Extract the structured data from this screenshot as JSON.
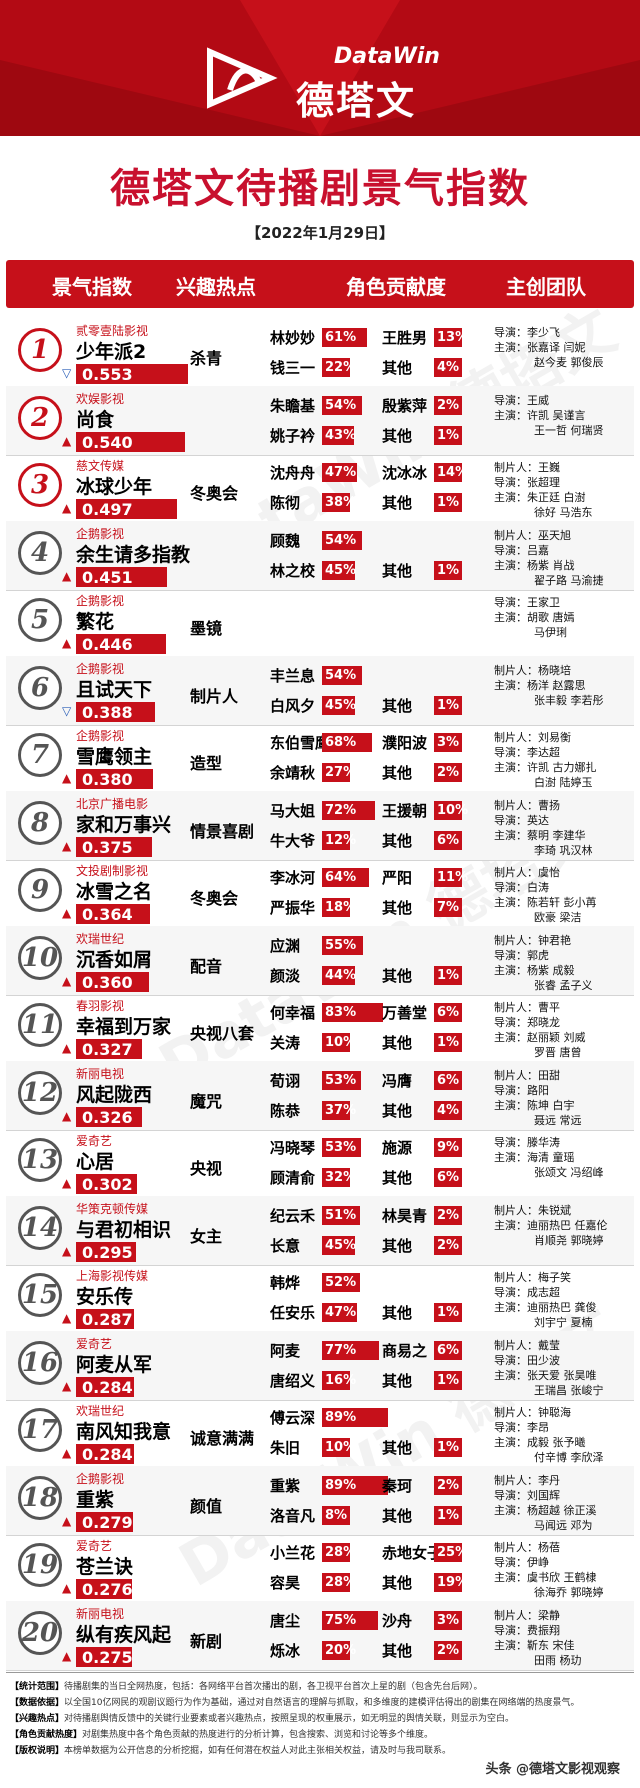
{
  "brand": {
    "cn": "德塔文",
    "en": "DataWin"
  },
  "title": "德塔文待播剧景气指数",
  "date": "【2022年1月29日】",
  "headers": [
    "景气指数",
    "兴趣热点",
    "角色贡献度",
    "主创团队"
  ],
  "colors": {
    "accent": "#c6101a",
    "dark_bar": "#2d2d2d"
  },
  "chart_data": {
    "type": "table",
    "rows": [
      {
        "rank": "1",
        "company": "贰零壹陆影视",
        "drama": "少年派2",
        "score": "0.553",
        "value": 0.553,
        "trend": "down",
        "hot": "杀青",
        "a1": "林妙妙",
        "p1": "61%",
        "v1": 61,
        "a2": "王胜男",
        "p2": "13%",
        "v2": 13,
        "a3": "钱三一",
        "p3": "22%",
        "v3": 22,
        "a4": "其他",
        "p4": "4%",
        "v4": 4,
        "crew": [
          "导演：李少飞",
          "主演：张嘉译 闫妮",
          "赵今麦 郭俊辰"
        ]
      },
      {
        "rank": "2",
        "company": "欢娱影视",
        "drama": "尚食",
        "score": "0.540",
        "value": 0.54,
        "trend": "up",
        "hot": "",
        "a1": "朱瞻基",
        "p1": "54%",
        "v1": 54,
        "a2": "殷紫萍",
        "p2": "2%",
        "v2": 2,
        "a3": "姚子衿",
        "p3": "43%",
        "v3": 43,
        "a4": "其他",
        "p4": "1%",
        "v4": 1,
        "crew": [
          "导演：王威",
          "主演：许凯 吴谨言",
          "王一哲 何瑞贤"
        ]
      },
      {
        "rank": "3",
        "company": "慈文传媒",
        "drama": "冰球少年",
        "score": "0.497",
        "value": 0.497,
        "trend": "up",
        "hot": "冬奥会",
        "a1": "沈舟舟",
        "p1": "47%",
        "v1": 47,
        "a2": "沈冰冰",
        "p2": "14%",
        "v2": 14,
        "a3": "陈彻",
        "p3": "38%",
        "v3": 38,
        "a4": "其他",
        "p4": "1%",
        "v4": 1,
        "crew": [
          "制片人：王巍",
          "导演：张超理",
          "主演：朱正廷 白澍",
          "徐好 马浩东"
        ]
      },
      {
        "rank": "4",
        "company": "企鹅影视",
        "drama": "余生请多指教",
        "score": "0.451",
        "value": 0.451,
        "trend": "up",
        "hot": "",
        "a1": "顾魏",
        "p1": "54%",
        "v1": 54,
        "a2": "",
        "p2": "",
        "v2": 0,
        "a3": "林之校",
        "p3": "45%",
        "v3": 45,
        "a4": "其他",
        "p4": "1%",
        "v4": 1,
        "crew": [
          "制片人：巫天旭",
          "导演：吕嘉",
          "主演：杨紫 肖战",
          "翟子路 马渝捷"
        ]
      },
      {
        "rank": "5",
        "company": "企鹅影视",
        "drama": "繁花",
        "score": "0.446",
        "value": 0.446,
        "trend": "up",
        "hot": "墨镜",
        "a1": "",
        "p1": "",
        "v1": 0,
        "a2": "",
        "p2": "",
        "v2": 0,
        "a3": "",
        "p3": "",
        "v3": 0,
        "a4": "",
        "p4": "",
        "v4": 0,
        "crew": [
          "导演：王家卫",
          "主演：胡歌 唐嫣",
          "马伊琍"
        ]
      },
      {
        "rank": "6",
        "company": "企鹅影视",
        "drama": "且试天下",
        "score": "0.388",
        "value": 0.388,
        "trend": "down",
        "hot": "制片人",
        "a1": "丰兰息",
        "p1": "54%",
        "v1": 54,
        "a2": "",
        "p2": "",
        "v2": 0,
        "a3": "白风夕",
        "p3": "45%",
        "v3": 45,
        "a4": "其他",
        "p4": "1%",
        "v4": 1,
        "crew": [
          "制片人：杨晓培",
          "主演：杨洋 赵露思",
          "张丰毅 李若彤"
        ]
      },
      {
        "rank": "7",
        "company": "企鹅影视",
        "drama": "雪鹰领主",
        "score": "0.380",
        "value": 0.38,
        "trend": "up",
        "hot": "造型",
        "a1": "东伯雪鹰",
        "p1": "68%",
        "v1": 68,
        "a2": "濮阳波",
        "p2": "3%",
        "v2": 3,
        "a3": "余靖秋",
        "p3": "27%",
        "v3": 27,
        "a4": "其他",
        "p4": "2%",
        "v4": 2,
        "crew": [
          "制片人：刘易衡",
          "导演：李达超",
          "主演：许凯 古力娜扎",
          "白澍 陆婷玉"
        ]
      },
      {
        "rank": "8",
        "company": "北京广播电影",
        "drama": "家和万事兴",
        "score": "0.375",
        "value": 0.375,
        "trend": "up",
        "hot": "情景喜剧",
        "a1": "马大姐",
        "p1": "72%",
        "v1": 72,
        "a2": "王援朝",
        "p2": "10%",
        "v2": 10,
        "a3": "牛大爷",
        "p3": "12%",
        "v3": 12,
        "a4": "其他",
        "p4": "6%",
        "v4": 6,
        "crew": [
          "制片人：曹扬",
          "导演：英达",
          "主演：蔡明 李建华",
          "李琦 巩汉林"
        ]
      },
      {
        "rank": "9",
        "company": "文投剧制影视",
        "drama": "冰雪之名",
        "score": "0.364",
        "value": 0.364,
        "trend": "up",
        "hot": "冬奥会",
        "a1": "李冰河",
        "p1": "64%",
        "v1": 64,
        "a2": "严阳",
        "p2": "11%",
        "v2": 11,
        "a3": "严振华",
        "p3": "18%",
        "v3": 18,
        "a4": "其他",
        "p4": "7%",
        "v4": 7,
        "crew": [
          "制片人：虞怡",
          "导演：白涛",
          "主演：陈若轩 彭小苒",
          "欧豪 梁洁"
        ]
      },
      {
        "rank": "10",
        "company": "欢瑞世纪",
        "drama": "沉香如屑",
        "score": "0.360",
        "value": 0.36,
        "trend": "up",
        "hot": "配音",
        "a1": "应渊",
        "p1": "55%",
        "v1": 55,
        "a2": "",
        "p2": "",
        "v2": 0,
        "a3": "颜淡",
        "p3": "44%",
        "v3": 44,
        "a4": "其他",
        "p4": "1%",
        "v4": 1,
        "crew": [
          "制片人：钟君艳",
          "导演：郭虎",
          "主演：杨紫 成毅",
          "张睿 孟子义"
        ]
      },
      {
        "rank": "11",
        "company": "春羽影视",
        "drama": "幸福到万家",
        "score": "0.327",
        "value": 0.327,
        "trend": "up",
        "hot": "央视八套",
        "a1": "何幸福",
        "p1": "83%",
        "v1": 83,
        "a2": "万善堂",
        "p2": "6%",
        "v2": 6,
        "a3": "关涛",
        "p3": "10%",
        "v3": 10,
        "a4": "其他",
        "p4": "1%",
        "v4": 1,
        "crew": [
          "制片人：曹平",
          "导演：郑晓龙",
          "主演：赵丽颖 刘威",
          "罗晋 唐曾"
        ]
      },
      {
        "rank": "12",
        "company": "新丽电视",
        "drama": "风起陇西",
        "score": "0.326",
        "value": 0.326,
        "trend": "up",
        "hot": "魔咒",
        "a1": "荀诩",
        "p1": "53%",
        "v1": 53,
        "a2": "冯膺",
        "p2": "6%",
        "v2": 6,
        "a3": "陈恭",
        "p3": "37%",
        "v3": 37,
        "a4": "其他",
        "p4": "4%",
        "v4": 4,
        "crew": [
          "制片人：田甜",
          "导演：路阳",
          "主演：陈坤 白宇",
          "聂远 常远"
        ]
      },
      {
        "rank": "13",
        "company": "爱奇艺",
        "drama": "心居",
        "score": "0.302",
        "value": 0.302,
        "trend": "up",
        "hot": "央视",
        "a1": "冯晓琴",
        "p1": "53%",
        "v1": 53,
        "a2": "施源",
        "p2": "9%",
        "v2": 9,
        "a3": "顾清俞",
        "p3": "32%",
        "v3": 32,
        "a4": "其他",
        "p4": "6%",
        "v4": 6,
        "crew": [
          "导演：滕华涛",
          "主演：海清 童瑶",
          "张颂文 冯绍峰"
        ]
      },
      {
        "rank": "14",
        "company": "华策克顿传媒",
        "drama": "与君初相识",
        "score": "0.295",
        "value": 0.295,
        "trend": "up",
        "hot": "女主",
        "a1": "纪云禾",
        "p1": "51%",
        "v1": 51,
        "a2": "林昊青",
        "p2": "2%",
        "v2": 2,
        "a3": "长意",
        "p3": "45%",
        "v3": 45,
        "a4": "其他",
        "p4": "2%",
        "v4": 2,
        "crew": [
          "制片人：朱锐斌",
          "主演：迪丽热巴 任嘉伦",
          "肖顺尧 郭晓婷"
        ]
      },
      {
        "rank": "15",
        "company": "上海影视传媒",
        "drama": "安乐传",
        "score": "0.287",
        "value": 0.287,
        "trend": "up",
        "hot": "",
        "a1": "韩烨",
        "p1": "52%",
        "v1": 52,
        "a2": "",
        "p2": "",
        "v2": 0,
        "a3": "任安乐",
        "p3": "47%",
        "v3": 47,
        "a4": "其他",
        "p4": "1%",
        "v4": 1,
        "crew": [
          "制片人：梅子笑",
          "导演：成志超",
          "主演：迪丽热巴 龚俊",
          "刘宇宁 夏楠"
        ]
      },
      {
        "rank": "16",
        "company": "爱奇艺",
        "drama": "阿麦从军",
        "score": "0.284",
        "value": 0.284,
        "trend": "up",
        "hot": "",
        "a1": "阿麦",
        "p1": "77%",
        "v1": 77,
        "a2": "商易之",
        "p2": "6%",
        "v2": 6,
        "a3": "唐绍义",
        "p3": "16%",
        "v3": 16,
        "a4": "其他",
        "p4": "1%",
        "v4": 1,
        "crew": [
          "制片人：戴莹",
          "导演：田少波",
          "主演：张天爱 张昊唯",
          "王瑞昌 张峻宁"
        ]
      },
      {
        "rank": "17",
        "company": "欢瑞世纪",
        "drama": "南风知我意",
        "score": "0.284",
        "value": 0.284,
        "trend": "up",
        "hot": "诚意满满",
        "a1": "傅云深",
        "p1": "89%",
        "v1": 89,
        "a2": "",
        "p2": "",
        "v2": 0,
        "a3": "朱旧",
        "p3": "10%",
        "v3": 10,
        "a4": "其他",
        "p4": "1%",
        "v4": 1,
        "crew": [
          "制片人：钟聪海",
          "导演：李昂",
          "主演：成毅 张予曦",
          "付辛博 李欣泽"
        ]
      },
      {
        "rank": "18",
        "company": "企鹅影视",
        "drama": "重紫",
        "score": "0.279",
        "value": 0.279,
        "trend": "up",
        "hot": "颜值",
        "a1": "重紫",
        "p1": "89%",
        "v1": 89,
        "a2": "秦珂",
        "p2": "2%",
        "v2": 2,
        "a3": "洛音凡",
        "p3": "8%",
        "v3": 8,
        "a4": "其他",
        "p4": "1%",
        "v4": 1,
        "crew": [
          "制片人：李丹",
          "导演：刘国辉",
          "主演：杨超越 徐正溪",
          "马闻远 邓为"
        ]
      },
      {
        "rank": "19",
        "company": "爱奇艺",
        "drama": "苍兰诀",
        "score": "0.276",
        "value": 0.276,
        "trend": "up",
        "hot": "",
        "a1": "小兰花",
        "p1": "28%",
        "v1": 28,
        "a2": "赤地女子",
        "p2": "25%",
        "v2": 25,
        "a3": "容昊",
        "p3": "28%",
        "v3": 28,
        "a4": "其他",
        "p4": "19%",
        "v4": 19,
        "crew": [
          "制片人：杨蓓",
          "导演：伊峥",
          "主演：虞书欣 王鹤棣",
          "徐海乔 郭晓婷"
        ]
      },
      {
        "rank": "20",
        "company": "新丽电视",
        "drama": "纵有疾风起",
        "score": "0.275",
        "value": 0.275,
        "trend": "up",
        "hot": "新剧",
        "a1": "唐尘",
        "p1": "75%",
        "v1": 75,
        "a2": "沙舟",
        "p2": "3%",
        "v2": 3,
        "a3": "烁冰",
        "p3": "20%",
        "v3": 20,
        "a4": "其他",
        "p4": "2%",
        "v4": 2,
        "crew": [
          "制片人：梁静",
          "导演：费振翔",
          "主演：靳东 宋佳",
          "田雨 杨玏"
        ]
      }
    ]
  },
  "notes": [
    {
      "label": "【统计范围】",
      "text": "待播剧集的当日全网热度，包括：各网络平台首次播出的剧，各卫视平台首次上星的剧（包含先台后网）。"
    },
    {
      "label": "【数据依据】",
      "text": "以全国10亿网民的观剧议题行为作为基础，通过对自然语言的理解与抓取，和多维度的建模评估得出的剧集在网络端的热度景气。"
    },
    {
      "label": "【兴趣热点】",
      "text": "对待播剧舆情反馈中的关键行业要素或者兴趣热点，按照呈现的权重展示，如无明显的舆情关联，则显示为空白。"
    },
    {
      "label": "【角色贡献热度】",
      "text": "对剧集热度中各个角色贡献的热度进行的分析计算，包含搜索、浏览和讨论等多个维度。"
    },
    {
      "label": "【版权说明】",
      "text": "本榜单数据为公开信息的分析挖掘，如有任何潜在权益人对此主张相关权益，请及时与我司联系。"
    }
  ],
  "source": "头条 @德塔文影视观察"
}
